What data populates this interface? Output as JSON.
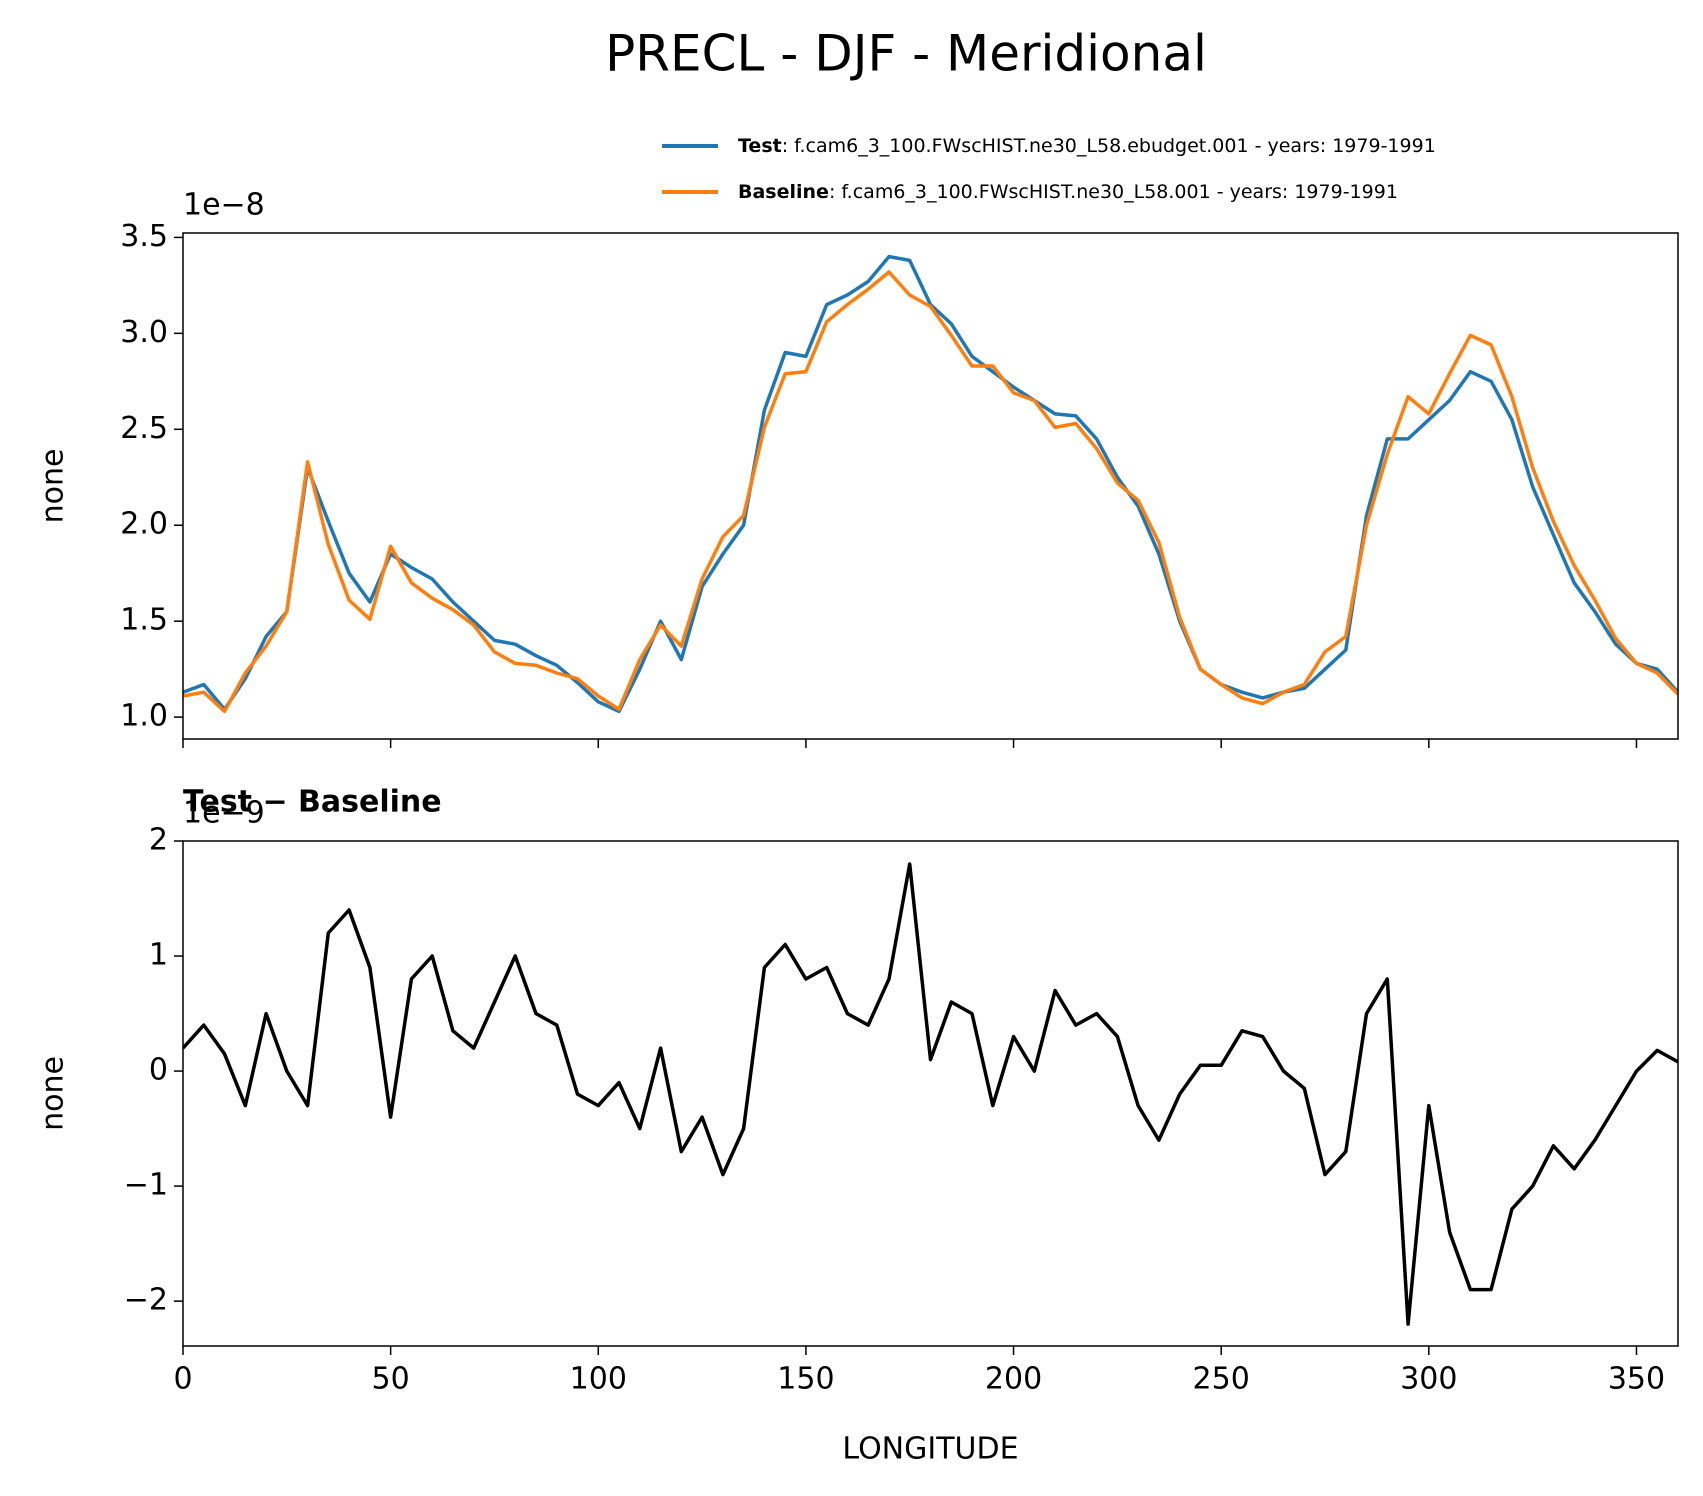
{
  "title": "PRECL - DJF - Meridional",
  "chart_data": [
    {
      "type": "line",
      "ylabel": "none",
      "offset_text": "1e−8",
      "show_xtick_labels": false,
      "x": [
        0,
        5,
        10,
        15,
        20,
        25,
        30,
        35,
        40,
        45,
        50,
        55,
        60,
        65,
        70,
        75,
        80,
        85,
        90,
        95,
        100,
        105,
        110,
        115,
        120,
        125,
        130,
        135,
        140,
        145,
        150,
        155,
        160,
        165,
        170,
        175,
        180,
        185,
        190,
        195,
        200,
        205,
        210,
        215,
        220,
        225,
        230,
        235,
        240,
        245,
        250,
        255,
        260,
        265,
        270,
        275,
        280,
        285,
        290,
        295,
        300,
        305,
        310,
        315,
        320,
        325,
        330,
        335,
        340,
        345,
        350,
        355,
        360
      ],
      "series": [
        {
          "name": "Test",
          "description": ": f.cam6_3_100.FWscHIST.ne30_L58.ebudget.001 - years: 1979-1991",
          "color": "#1f77b4",
          "values": [
            1.13,
            1.17,
            1.04,
            1.2,
            1.42,
            1.55,
            2.3,
            2.02,
            1.75,
            1.6,
            1.85,
            1.78,
            1.72,
            1.6,
            1.5,
            1.4,
            1.38,
            1.32,
            1.27,
            1.18,
            1.08,
            1.03,
            1.25,
            1.5,
            1.3,
            1.68,
            1.85,
            2.0,
            2.6,
            2.9,
            2.88,
            3.15,
            3.2,
            3.27,
            3.4,
            3.38,
            3.15,
            3.05,
            2.88,
            2.8,
            2.72,
            2.65,
            2.58,
            2.57,
            2.45,
            2.25,
            2.1,
            1.85,
            1.5,
            1.25,
            1.17,
            1.13,
            1.1,
            1.13,
            1.15,
            1.25,
            1.35,
            2.05,
            2.45,
            2.45,
            2.55,
            2.65,
            2.8,
            2.75,
            2.55,
            2.2,
            1.95,
            1.7,
            1.55,
            1.38,
            1.28,
            1.25,
            1.13
          ]
        },
        {
          "name": "Baseline",
          "description": ": f.cam6_3_100.FWscHIST.ne30_L58.001 - years: 1979-1991",
          "color": "#ff7f0e",
          "values": [
            1.11,
            1.13,
            1.03,
            1.23,
            1.37,
            1.55,
            2.33,
            1.9,
            1.61,
            1.51,
            1.89,
            1.7,
            1.62,
            1.56,
            1.48,
            1.34,
            1.28,
            1.27,
            1.23,
            1.2,
            1.11,
            1.04,
            1.3,
            1.48,
            1.37,
            1.72,
            1.94,
            2.05,
            2.51,
            2.79,
            2.8,
            3.06,
            3.15,
            3.23,
            3.32,
            3.2,
            3.14,
            2.99,
            2.83,
            2.83,
            2.69,
            2.65,
            2.51,
            2.53,
            2.4,
            2.22,
            2.13,
            1.91,
            1.52,
            1.25,
            1.17,
            1.1,
            1.07,
            1.13,
            1.17,
            1.34,
            1.42,
            2.0,
            2.37,
            2.67,
            2.58,
            2.79,
            2.99,
            2.94,
            2.67,
            2.3,
            2.02,
            1.79,
            1.61,
            1.41,
            1.28,
            1.23,
            1.12
          ]
        }
      ],
      "xlim": [
        0,
        360
      ],
      "ylim": [
        0.886,
        3.523
      ],
      "xticks": [
        0,
        50,
        100,
        150,
        200,
        250,
        300,
        350
      ],
      "yticks": [
        {
          "value": 1,
          "label": "1.0"
        },
        1.5,
        {
          "value": 2,
          "label": "2.0"
        },
        2.5,
        {
          "value": 3,
          "label": "3.0"
        },
        3.5
      ]
    },
    {
      "type": "line",
      "title": "Test − Baseline",
      "xlabel": "LONGITUDE",
      "ylabel": "none",
      "offset_text": "1e−9",
      "show_xtick_labels": true,
      "x": [
        0,
        5,
        10,
        15,
        20,
        25,
        30,
        35,
        40,
        45,
        50,
        55,
        60,
        65,
        70,
        75,
        80,
        85,
        90,
        95,
        100,
        105,
        110,
        115,
        120,
        125,
        130,
        135,
        140,
        145,
        150,
        155,
        160,
        165,
        170,
        175,
        180,
        185,
        190,
        195,
        200,
        205,
        210,
        215,
        220,
        225,
        230,
        235,
        240,
        245,
        250,
        255,
        260,
        265,
        270,
        275,
        280,
        285,
        290,
        295,
        300,
        305,
        310,
        315,
        320,
        325,
        330,
        335,
        340,
        345,
        350,
        355,
        360
      ],
      "series": [
        {
          "color": "#000000",
          "values": [
            0.2,
            0.4,
            0.15,
            -0.3,
            0.5,
            0.0,
            -0.3,
            1.2,
            1.4,
            0.9,
            -0.4,
            0.8,
            1.0,
            0.35,
            0.2,
            0.6,
            1.0,
            0.5,
            0.4,
            -0.2,
            -0.3,
            -0.1,
            -0.5,
            0.2,
            -0.7,
            -0.4,
            -0.9,
            -0.5,
            0.9,
            1.1,
            0.8,
            0.9,
            0.5,
            0.4,
            0.8,
            1.8,
            0.1,
            0.6,
            0.5,
            -0.3,
            0.3,
            0.0,
            0.7,
            0.4,
            0.5,
            0.3,
            -0.3,
            -0.6,
            -0.2,
            0.05,
            0.05,
            0.35,
            0.3,
            0.0,
            -0.15,
            -0.9,
            -0.7,
            0.5,
            0.8,
            -2.2,
            -0.3,
            -1.4,
            -1.9,
            -1.9,
            -1.2,
            -1.0,
            -0.65,
            -0.85,
            -0.6,
            -0.3,
            0.0,
            0.18,
            0.08
          ]
        }
      ],
      "xlim": [
        0,
        360
      ],
      "ylim": [
        -2.39,
        2.0
      ],
      "xticks": [
        0,
        50,
        100,
        150,
        200,
        250,
        300,
        350
      ],
      "yticks": [
        {
          "value": -2,
          "label": "−2"
        },
        {
          "value": -1,
          "label": "−1"
        },
        0,
        1,
        2
      ]
    }
  ]
}
